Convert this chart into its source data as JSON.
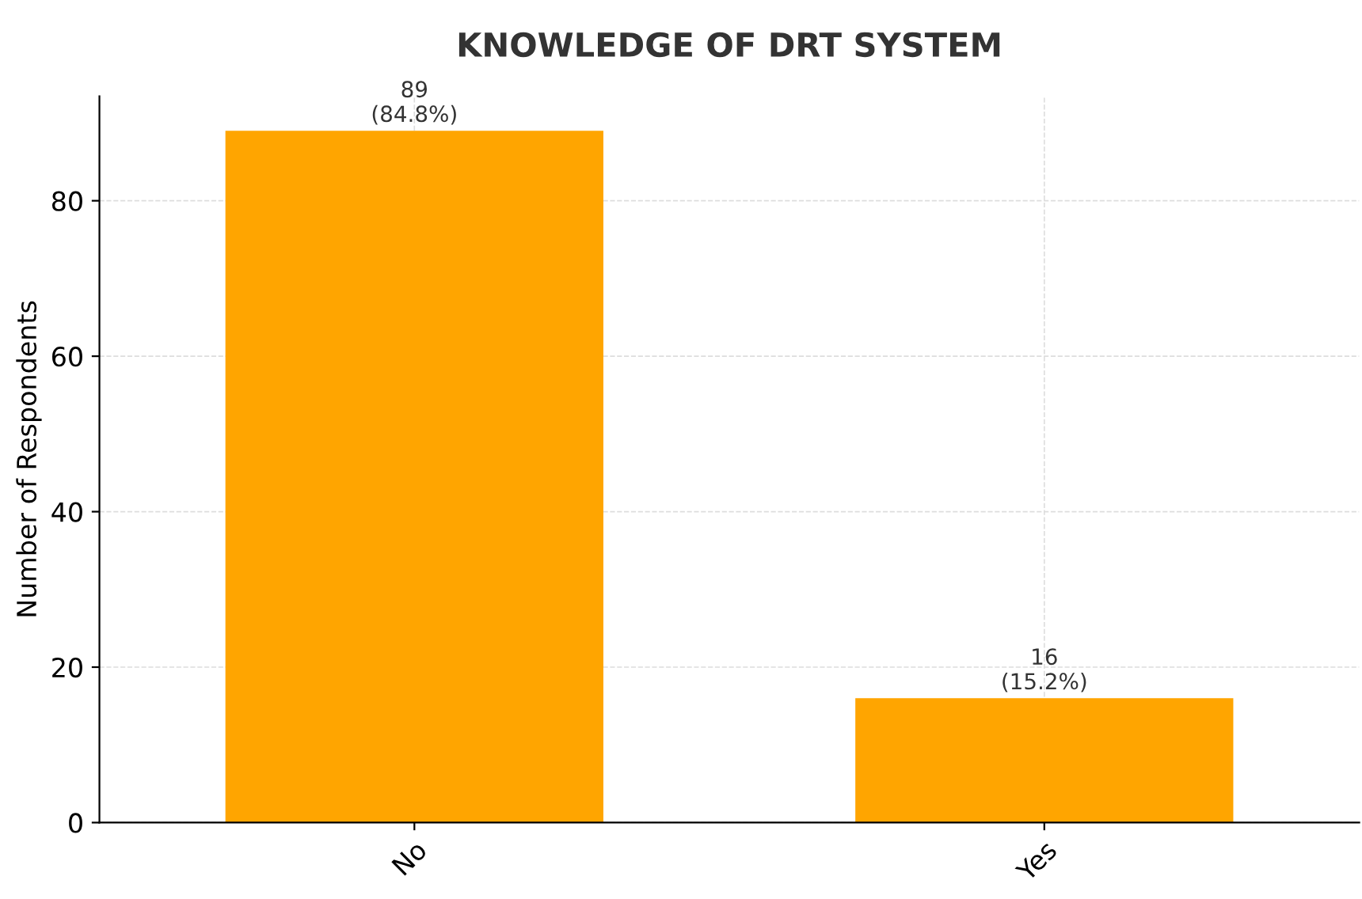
{
  "chart_data": {
    "type": "bar",
    "title": "KNOWLEDGE OF DRT SYSTEM",
    "ylabel": "Number of Respondents",
    "categories": [
      "No",
      "Yes"
    ],
    "values": [
      89,
      16
    ],
    "color": "#ffa500",
    "value_labels": [
      "89\n(84.8%)",
      "16\n(15.2%)"
    ],
    "ylim": [
      0,
      93.45
    ],
    "yticks": [
      0,
      20,
      40,
      60,
      80
    ],
    "grid": true
  }
}
